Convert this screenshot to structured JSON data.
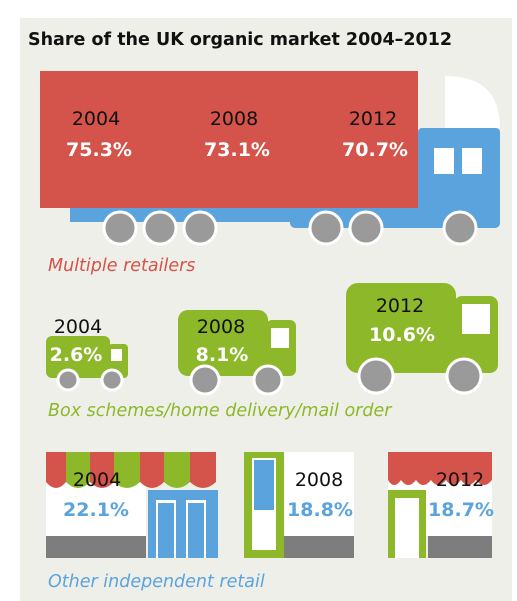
{
  "chart_data": {
    "type": "pictogram",
    "title": "Share of the UK organic market 2004–2012",
    "years": [
      "2004",
      "2008",
      "2012"
    ],
    "series": [
      {
        "name": "Multiple retailers",
        "icon": "lorry-icon",
        "color": "#d4534a",
        "values": [
          75.3,
          73.1,
          70.7
        ],
        "labels": [
          "75.3%",
          "73.1%",
          "70.7%"
        ]
      },
      {
        "name": "Box schemes/home delivery/mail order",
        "icon": "delivery-van-icon",
        "color": "#8cb829",
        "values": [
          2.6,
          8.1,
          10.6
        ],
        "labels": [
          "2.6%",
          "8.1%",
          "10.6%"
        ]
      },
      {
        "name": "Other independent retail",
        "icon": "shopfront-icon",
        "color": "#5ba3dc",
        "values": [
          22.1,
          18.8,
          18.7
        ],
        "labels": [
          "22.1%",
          "18.8%",
          "18.7%"
        ]
      }
    ]
  },
  "colors": {
    "background": "#efefea",
    "retailers": "#d4534a",
    "box": "#8cb829",
    "independent": "#5ba3dc",
    "wheel": "#9a9a9a",
    "grey": "#7d7d7d"
  }
}
